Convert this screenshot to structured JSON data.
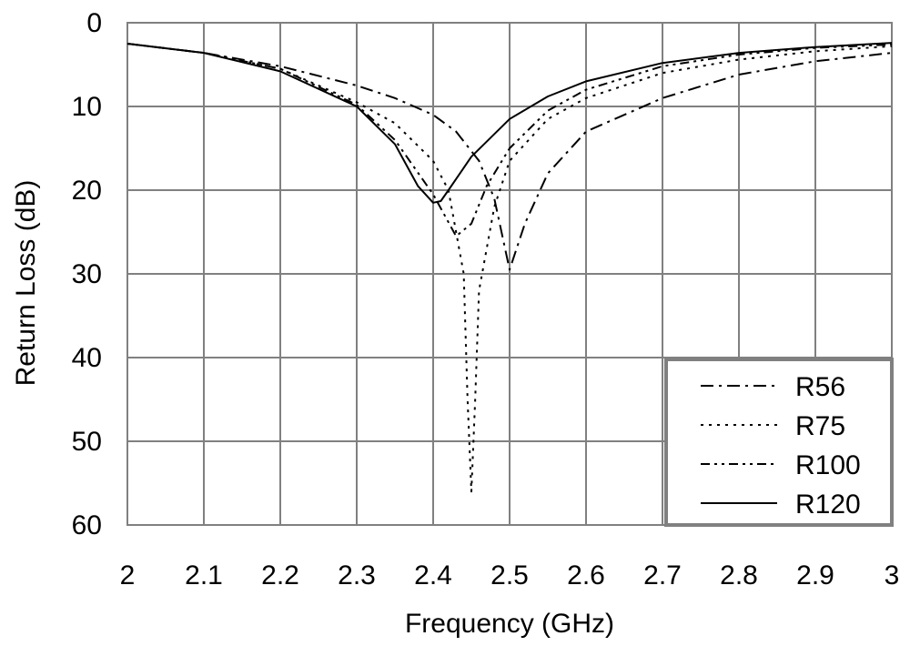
{
  "chart_data": {
    "type": "line",
    "title": "",
    "xlabel": "Frequency (GHz)",
    "ylabel": "Return Loss (dB)",
    "xlim": [
      2,
      3
    ],
    "ylim": [
      0,
      60
    ],
    "y_inverted": true,
    "grid": true,
    "legend_position": "bottom-right",
    "x_ticks": [
      "2",
      "2.1",
      "2.2",
      "2.3",
      "2.4",
      "2.5",
      "2.6",
      "2.7",
      "2.8",
      "2.9",
      "3"
    ],
    "y_ticks": [
      "0",
      "10",
      "20",
      "30",
      "40",
      "50",
      "60"
    ],
    "series": [
      {
        "name": "R56",
        "dash": "dash-dot",
        "x": [
          2.0,
          2.1,
          2.2,
          2.3,
          2.35,
          2.4,
          2.43,
          2.46,
          2.48,
          2.5,
          2.52,
          2.55,
          2.6,
          2.7,
          2.8,
          2.9,
          3.0
        ],
        "y": [
          2.5,
          3.6,
          5.2,
          7.5,
          9.0,
          11.0,
          13.0,
          16.5,
          21.0,
          29.5,
          24.0,
          18.0,
          13.0,
          9.0,
          6.2,
          4.6,
          3.6
        ]
      },
      {
        "name": "R75",
        "dash": "dotted",
        "x": [
          2.0,
          2.1,
          2.2,
          2.3,
          2.35,
          2.4,
          2.42,
          2.44,
          2.445,
          2.45,
          2.455,
          2.46,
          2.48,
          2.5,
          2.55,
          2.6,
          2.7,
          2.8,
          2.9,
          3.0
        ],
        "y": [
          2.5,
          3.6,
          5.5,
          9.5,
          12.0,
          16.5,
          20.0,
          30.0,
          45.0,
          56.0,
          45.0,
          32.0,
          22.0,
          16.5,
          11.5,
          9.0,
          6.0,
          4.4,
          3.4,
          2.8
        ]
      },
      {
        "name": "R100",
        "dash": "dash-dot-dot",
        "x": [
          2.0,
          2.1,
          2.2,
          2.3,
          2.35,
          2.4,
          2.43,
          2.45,
          2.47,
          2.5,
          2.55,
          2.6,
          2.7,
          2.8,
          2.9,
          3.0
        ],
        "y": [
          2.5,
          3.6,
          5.5,
          9.8,
          14.0,
          20.5,
          25.5,
          24.0,
          19.5,
          15.0,
          10.5,
          8.0,
          5.2,
          3.8,
          3.0,
          2.6
        ]
      },
      {
        "name": "R120",
        "dash": "solid",
        "x": [
          2.0,
          2.1,
          2.2,
          2.3,
          2.35,
          2.38,
          2.4,
          2.41,
          2.42,
          2.45,
          2.5,
          2.55,
          2.6,
          2.7,
          2.8,
          2.9,
          3.0
        ],
        "y": [
          2.5,
          3.6,
          5.8,
          10.0,
          14.5,
          19.5,
          21.5,
          21.3,
          20.0,
          16.0,
          11.5,
          8.8,
          7.0,
          4.8,
          3.6,
          2.9,
          2.4
        ]
      }
    ]
  }
}
